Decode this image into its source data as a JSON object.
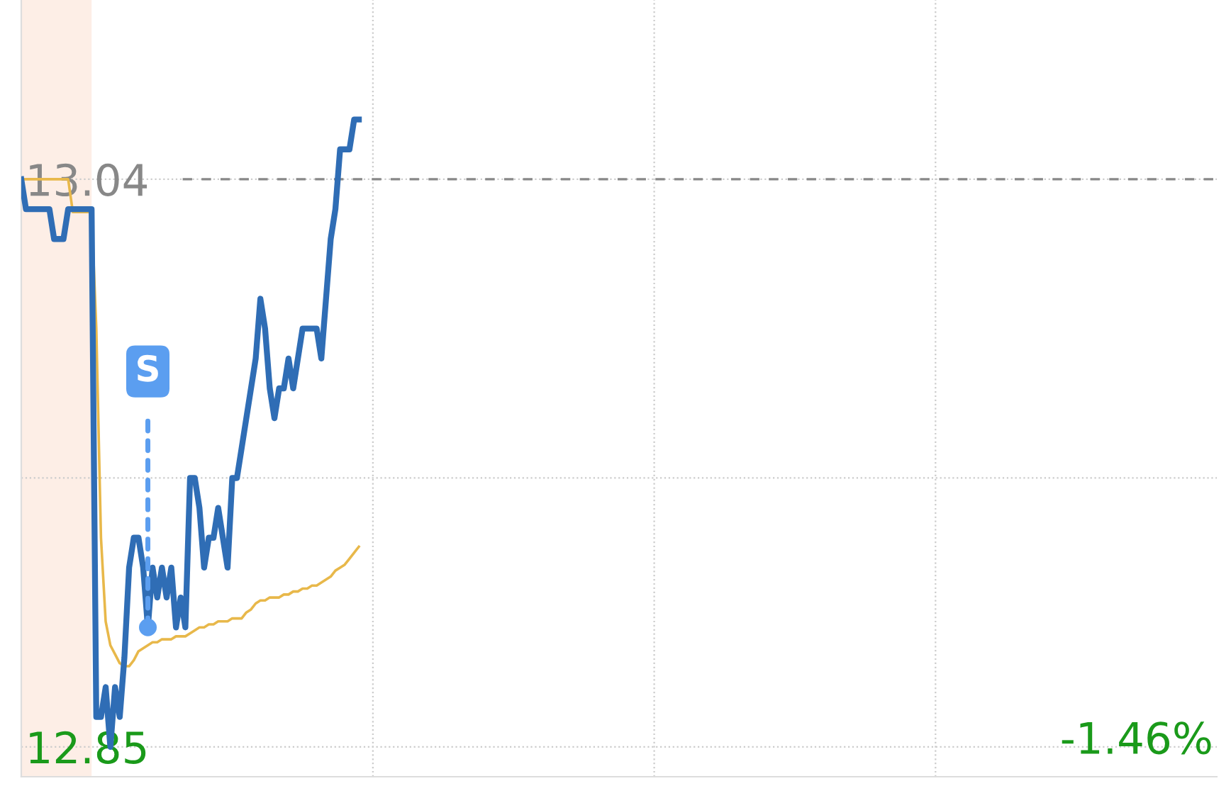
{
  "chart_data": {
    "type": "line",
    "categories": [
      null,
      null,
      null,
      null,
      null,
      null,
      null,
      null,
      null,
      null,
      null,
      null,
      null,
      null,
      null,
      null,
      null,
      null,
      null,
      null,
      null,
      null,
      null,
      null,
      null,
      null,
      null,
      null,
      null,
      null,
      null,
      null,
      null,
      null,
      null,
      null,
      null,
      null,
      null,
      null,
      null,
      null,
      null,
      null,
      null,
      null,
      null,
      null,
      null,
      null,
      null,
      null,
      null,
      null,
      null,
      null,
      null,
      null,
      null,
      null,
      null,
      null,
      null,
      null,
      null,
      null,
      null,
      null,
      null,
      null,
      null,
      null,
      null,
      null,
      null,
      null,
      null,
      null,
      null,
      null,
      null,
      null,
      null,
      null,
      null,
      null,
      null,
      null,
      null,
      null,
      null,
      null,
      null,
      null,
      null,
      null,
      null,
      null,
      null,
      null,
      null,
      null,
      null,
      null,
      null,
      null,
      null,
      null,
      null,
      null,
      null,
      null,
      null,
      null,
      null,
      null,
      null,
      null,
      null,
      null,
      null,
      null,
      null,
      null,
      null,
      null,
      null,
      null,
      null,
      null,
      null,
      null,
      null,
      null,
      null,
      null,
      null,
      null,
      null,
      null,
      null,
      null,
      null,
      null,
      null,
      null,
      null,
      null,
      null,
      null,
      null,
      null,
      null,
      null,
      null,
      null,
      null,
      null,
      null,
      null,
      null,
      null,
      null,
      null,
      null,
      null,
      null,
      null,
      null,
      null,
      null,
      null,
      null,
      null,
      null,
      null,
      null,
      null,
      null,
      null,
      null,
      null,
      null,
      null,
      null,
      null,
      null,
      null,
      null,
      null,
      null,
      null,
      null,
      null,
      null,
      null,
      null,
      null,
      null,
      null,
      null,
      null,
      null,
      null,
      null,
      null,
      null,
      null,
      null,
      null,
      null,
      null,
      null,
      null,
      null,
      null,
      null,
      null,
      null,
      null,
      null,
      null,
      null,
      null,
      null,
      null,
      null,
      null,
      null,
      null,
      null,
      null,
      null,
      null,
      null,
      null,
      null,
      null,
      null,
      null,
      null,
      null,
      null,
      null,
      null,
      null,
      null,
      null,
      null,
      null,
      null,
      null,
      null,
      null,
      null,
      null
    ],
    "ylim": [
      12.84,
      13.1
    ],
    "yticks": [
      {
        "value": 12.85,
        "label": "12.85"
      },
      {
        "value": 12.94,
        "label": null
      },
      {
        "value": 13.04,
        "label": "13.04"
      }
    ],
    "tick_labels": "y",
    "grid": true,
    "legend": false,
    "marker": "none",
    "line_style": "solid",
    "series": [
      {
        "color": "#2f6db5",
        "values": [
          13.04,
          13.03,
          13.03,
          13.03,
          13.03,
          13.03,
          13.03,
          13.02,
          13.02,
          13.02,
          13.03,
          13.03,
          13.03,
          13.03,
          13.03,
          13.03,
          12.86,
          12.86,
          12.87,
          12.85,
          12.87,
          12.86,
          12.88,
          12.91,
          12.92,
          12.92,
          12.91,
          12.89,
          12.91,
          12.9,
          12.91,
          12.9,
          12.91,
          12.89,
          12.9,
          12.89,
          12.94,
          12.94,
          12.93,
          12.91,
          12.92,
          12.92,
          12.93,
          12.92,
          12.91,
          12.94,
          12.94,
          12.95,
          12.96,
          12.97,
          12.98,
          13.0,
          12.99,
          12.97,
          12.96,
          12.97,
          12.97,
          12.98,
          12.97,
          12.98,
          12.99,
          12.99,
          12.99,
          12.99,
          12.98,
          13.0,
          13.02,
          13.03,
          13.05,
          13.05,
          13.05,
          13.06,
          13.06,
          null,
          null,
          null,
          null,
          null,
          null,
          null,
          null,
          null,
          null,
          null,
          null,
          null,
          null,
          null,
          null,
          null,
          null,
          null,
          null,
          null,
          null,
          null,
          null,
          null,
          null,
          null,
          null,
          null,
          null,
          null,
          null,
          null,
          null,
          null,
          null,
          null,
          null,
          null,
          null,
          null,
          null,
          null,
          null,
          null,
          null,
          null,
          null,
          null,
          null,
          null,
          null,
          null,
          null,
          null,
          null,
          null,
          null,
          null,
          null,
          null,
          null,
          null,
          null,
          null,
          null,
          null,
          null,
          null,
          null,
          null,
          null,
          null,
          null,
          null,
          null,
          null,
          null,
          null,
          null,
          null,
          null,
          null,
          null,
          null,
          null,
          null,
          null,
          null,
          null,
          null,
          null,
          null,
          null,
          null,
          null,
          null,
          null,
          null,
          null,
          null,
          null,
          null,
          null,
          null,
          null,
          null,
          null,
          null,
          null,
          null,
          null,
          null,
          null,
          null,
          null,
          null,
          null,
          null,
          null,
          null,
          null,
          null,
          null,
          null,
          null,
          null,
          null,
          null,
          null,
          null,
          null,
          null,
          null,
          null,
          null,
          null,
          null,
          null,
          null,
          null,
          null,
          null,
          null,
          null,
          null,
          null,
          null,
          null,
          null,
          null,
          null,
          null,
          null,
          null,
          null,
          null,
          null,
          null,
          null,
          null,
          null,
          null,
          null,
          null,
          null,
          null,
          null,
          null,
          null,
          null,
          null,
          null,
          null,
          null,
          null,
          null,
          null,
          null,
          null,
          null,
          null,
          null
        ]
      },
      {
        "color": "#e8b84a",
        "values": [
          13.04,
          13.04,
          13.04,
          13.04,
          13.04,
          13.04,
          13.04,
          13.04,
          13.04,
          13.04,
          13.04,
          13.029,
          13.029,
          13.029,
          13.029,
          13.029,
          12.99,
          12.92,
          12.892,
          12.884,
          12.881,
          12.878,
          12.877,
          12.877,
          12.879,
          12.882,
          12.883,
          12.884,
          12.885,
          12.885,
          12.886,
          12.886,
          12.886,
          12.887,
          12.887,
          12.887,
          12.888,
          12.889,
          12.89,
          12.89,
          12.891,
          12.891,
          12.892,
          12.892,
          12.892,
          12.893,
          12.893,
          12.893,
          12.895,
          12.896,
          12.898,
          12.899,
          12.899,
          12.9,
          12.9,
          12.9,
          12.901,
          12.901,
          12.902,
          12.902,
          12.903,
          12.903,
          12.904,
          12.904,
          12.905,
          12.906,
          12.907,
          12.909,
          12.91,
          12.911,
          12.913,
          12.915,
          12.917,
          null,
          null,
          null,
          null,
          null,
          null,
          null,
          null,
          null,
          null,
          null,
          null,
          null,
          null,
          null,
          null,
          null,
          null,
          null,
          null,
          null,
          null,
          null,
          null,
          null,
          null,
          null,
          null,
          null,
          null,
          null,
          null,
          null,
          null,
          null,
          null,
          null,
          null,
          null,
          null,
          null,
          null,
          null,
          null,
          null,
          null,
          null,
          null,
          null,
          null,
          null,
          null,
          null,
          null,
          null,
          null,
          null,
          null,
          null,
          null,
          null,
          null,
          null,
          null,
          null,
          null,
          null,
          null,
          null,
          null,
          null,
          null,
          null,
          null,
          null,
          null,
          null,
          null,
          null,
          null,
          null,
          null,
          null,
          null,
          null,
          null,
          null,
          null,
          null,
          null,
          null,
          null,
          null,
          null,
          null,
          null,
          null,
          null,
          null,
          null,
          null,
          null,
          null,
          null,
          null,
          null,
          null,
          null,
          null,
          null,
          null,
          null,
          null,
          null,
          null,
          null,
          null,
          null,
          null,
          null,
          null,
          null,
          null,
          null,
          null,
          null,
          null,
          null,
          null,
          null,
          null,
          null,
          null,
          null,
          null,
          null,
          null,
          null,
          null,
          null,
          null,
          null,
          null,
          null,
          null,
          null,
          null,
          null,
          null,
          null,
          null,
          null,
          null,
          null,
          null,
          null,
          null,
          null,
          null,
          null,
          null,
          null,
          null,
          null,
          null,
          null,
          null,
          null,
          null,
          null,
          null,
          null,
          null,
          null,
          null,
          null,
          null,
          null,
          null,
          null,
          null,
          null,
          null
        ]
      }
    ],
    "ref_lines": [
      {
        "axis": "y",
        "value": 13.04,
        "color": "#888888",
        "line_style": "dashed"
      }
    ],
    "annotations": [
      {
        "text": "S",
        "y": 12.89
      },
      "-1.46%"
    ]
  }
}
